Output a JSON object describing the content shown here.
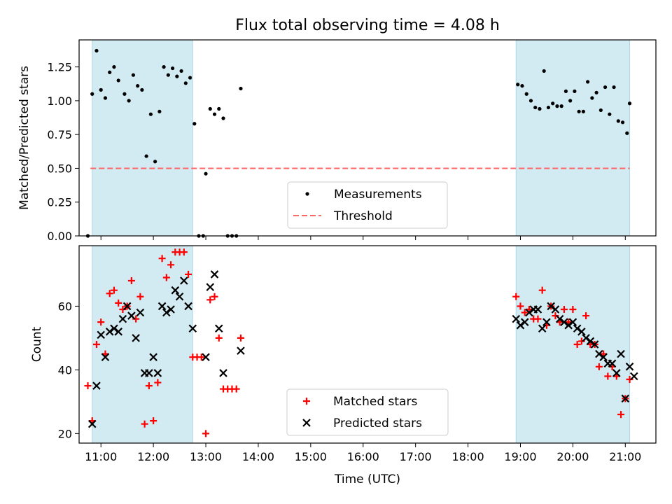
{
  "chart_data": [
    {
      "type": "scatter",
      "title": "Flux total observing time = 4.08 h",
      "ylabel": "Matched/Predicted stars",
      "xlim": [
        "10:35",
        "21:35"
      ],
      "ylim": [
        0,
        1.45
      ],
      "yticks": [
        "0.00",
        "0.25",
        "0.50",
        "0.75",
        "1.00",
        "1.25"
      ],
      "grid": false,
      "legend_position": "bottom-center",
      "shaded_intervals": [
        [
          "10:50",
          "12:45"
        ],
        [
          "18:55",
          "21:05"
        ]
      ],
      "shade_color": "#add8e6",
      "series": [
        {
          "name": "Measurements",
          "marker": "dot",
          "color": "#000000",
          "points": [
            [
              "10:45",
              0.0
            ],
            [
              "10:50",
              1.05
            ],
            [
              "10:55",
              1.37
            ],
            [
              "11:00",
              1.08
            ],
            [
              "11:05",
              1.02
            ],
            [
              "11:10",
              1.21
            ],
            [
              "11:15",
              1.25
            ],
            [
              "11:20",
              1.15
            ],
            [
              "11:27",
              1.05
            ],
            [
              "11:32",
              1.0
            ],
            [
              "11:37",
              1.19
            ],
            [
              "11:42",
              1.11
            ],
            [
              "11:47",
              1.08
            ],
            [
              "11:52",
              0.59
            ],
            [
              "11:57",
              0.9
            ],
            [
              "12:02",
              0.55
            ],
            [
              "12:07",
              0.92
            ],
            [
              "12:12",
              1.25
            ],
            [
              "12:17",
              1.19
            ],
            [
              "12:22",
              1.24
            ],
            [
              "12:27",
              1.18
            ],
            [
              "12:32",
              1.22
            ],
            [
              "12:37",
              1.13
            ],
            [
              "12:42",
              1.17
            ],
            [
              "12:47",
              0.83
            ],
            [
              "12:52",
              0.0
            ],
            [
              "12:57",
              0.0
            ],
            [
              "13:00",
              0.46
            ],
            [
              "13:05",
              0.94
            ],
            [
              "13:10",
              0.9
            ],
            [
              "13:15",
              0.94
            ],
            [
              "13:20",
              0.87
            ],
            [
              "13:25",
              0.0
            ],
            [
              "13:30",
              0.0
            ],
            [
              "13:35",
              0.0
            ],
            [
              "13:40",
              1.09
            ],
            [
              "18:57",
              1.12
            ],
            [
              "19:02",
              1.11
            ],
            [
              "19:07",
              1.05
            ],
            [
              "19:12",
              1.0
            ],
            [
              "19:17",
              0.95
            ],
            [
              "19:22",
              0.94
            ],
            [
              "19:27",
              1.22
            ],
            [
              "19:32",
              0.95
            ],
            [
              "19:37",
              0.98
            ],
            [
              "19:42",
              0.96
            ],
            [
              "19:47",
              0.96
            ],
            [
              "19:52",
              1.07
            ],
            [
              "19:57",
              1.0
            ],
            [
              "20:02",
              1.07
            ],
            [
              "20:07",
              0.92
            ],
            [
              "20:12",
              0.92
            ],
            [
              "20:17",
              1.14
            ],
            [
              "20:22",
              1.02
            ],
            [
              "20:27",
              1.06
            ],
            [
              "20:32",
              0.93
            ],
            [
              "20:37",
              1.1
            ],
            [
              "20:42",
              0.9
            ],
            [
              "20:47",
              1.1
            ],
            [
              "20:52",
              0.85
            ],
            [
              "20:57",
              0.84
            ],
            [
              "21:02",
              0.76
            ],
            [
              "21:05",
              0.98
            ]
          ]
        },
        {
          "name": "Threshold",
          "marker": "dashed-line",
          "color": "#ff6666",
          "points": [
            [
              "10:48",
              0.5
            ],
            [
              "21:05",
              0.5
            ]
          ]
        }
      ]
    },
    {
      "type": "scatter",
      "xlabel": "Time (UTC)",
      "ylabel": "Count",
      "xlim": [
        "10:35",
        "21:35"
      ],
      "ylim": [
        17,
        79
      ],
      "yticks": [
        "20",
        "40",
        "60"
      ],
      "xticks": [
        "11:00",
        "12:00",
        "13:00",
        "14:00",
        "15:00",
        "16:00",
        "17:00",
        "18:00",
        "19:00",
        "20:00",
        "21:00"
      ],
      "grid": false,
      "legend_position": "bottom-center",
      "shaded_intervals": [
        [
          "10:50",
          "12:45"
        ],
        [
          "18:55",
          "21:05"
        ]
      ],
      "shade_color": "#add8e6",
      "series": [
        {
          "name": "Matched stars",
          "marker": "plus",
          "color": "#ff0000",
          "points": [
            [
              "10:45",
              35
            ],
            [
              "10:50",
              24
            ],
            [
              "10:55",
              48
            ],
            [
              "11:00",
              55
            ],
            [
              "11:05",
              45
            ],
            [
              "11:10",
              64
            ],
            [
              "11:15",
              65
            ],
            [
              "11:20",
              61
            ],
            [
              "11:25",
              59
            ],
            [
              "11:30",
              60
            ],
            [
              "11:35",
              68
            ],
            [
              "11:40",
              56
            ],
            [
              "11:45",
              63
            ],
            [
              "11:50",
              23
            ],
            [
              "11:55",
              35
            ],
            [
              "12:00",
              24
            ],
            [
              "12:05",
              36
            ],
            [
              "12:10",
              75
            ],
            [
              "12:15",
              69
            ],
            [
              "12:20",
              73
            ],
            [
              "12:25",
              77
            ],
            [
              "12:30",
              77
            ],
            [
              "12:35",
              77
            ],
            [
              "12:40",
              70
            ],
            [
              "12:45",
              44
            ],
            [
              "12:50",
              44
            ],
            [
              "12:55",
              44
            ],
            [
              "13:00",
              20
            ],
            [
              "13:05",
              62
            ],
            [
              "13:10",
              63
            ],
            [
              "13:15",
              50
            ],
            [
              "13:20",
              34
            ],
            [
              "13:25",
              34
            ],
            [
              "13:30",
              34
            ],
            [
              "13:35",
              34
            ],
            [
              "13:40",
              50
            ],
            [
              "18:55",
              63
            ],
            [
              "19:00",
              60
            ],
            [
              "19:05",
              58
            ],
            [
              "19:10",
              59
            ],
            [
              "19:15",
              56
            ],
            [
              "19:20",
              56
            ],
            [
              "19:25",
              65
            ],
            [
              "19:30",
              54
            ],
            [
              "19:35",
              60
            ],
            [
              "19:40",
              57
            ],
            [
              "19:45",
              55
            ],
            [
              "19:50",
              59
            ],
            [
              "19:55",
              55
            ],
            [
              "20:00",
              59
            ],
            [
              "20:05",
              48
            ],
            [
              "20:10",
              49
            ],
            [
              "20:15",
              57
            ],
            [
              "20:20",
              48
            ],
            [
              "20:25",
              48
            ],
            [
              "20:30",
              41
            ],
            [
              "20:35",
              45
            ],
            [
              "20:40",
              38
            ],
            [
              "20:45",
              41
            ],
            [
              "20:50",
              38
            ],
            [
              "20:55",
              26
            ],
            [
              "21:00",
              31
            ],
            [
              "21:05",
              37
            ]
          ]
        },
        {
          "name": "Predicted stars",
          "marker": "x",
          "color": "#000000",
          "points": [
            [
              "10:50",
              23
            ],
            [
              "10:55",
              35
            ],
            [
              "11:00",
              51
            ],
            [
              "11:05",
              44
            ],
            [
              "11:10",
              52
            ],
            [
              "11:15",
              53
            ],
            [
              "11:20",
              52
            ],
            [
              "11:25",
              56
            ],
            [
              "11:30",
              60
            ],
            [
              "11:35",
              57
            ],
            [
              "11:40",
              50
            ],
            [
              "11:45",
              58
            ],
            [
              "11:50",
              39
            ],
            [
              "11:55",
              39
            ],
            [
              "12:00",
              44
            ],
            [
              "12:05",
              39
            ],
            [
              "12:10",
              60
            ],
            [
              "12:15",
              58
            ],
            [
              "12:20",
              59
            ],
            [
              "12:25",
              65
            ],
            [
              "12:30",
              63
            ],
            [
              "12:35",
              68
            ],
            [
              "12:40",
              60
            ],
            [
              "12:45",
              53
            ],
            [
              "13:00",
              44
            ],
            [
              "13:05",
              66
            ],
            [
              "13:10",
              70
            ],
            [
              "13:15",
              53
            ],
            [
              "13:20",
              39
            ],
            [
              "13:40",
              46
            ],
            [
              "18:55",
              56
            ],
            [
              "19:00",
              54
            ],
            [
              "19:05",
              55
            ],
            [
              "19:10",
              58
            ],
            [
              "19:15",
              59
            ],
            [
              "19:20",
              59
            ],
            [
              "19:25",
              53
            ],
            [
              "19:30",
              55
            ],
            [
              "19:35",
              60
            ],
            [
              "19:40",
              59
            ],
            [
              "19:45",
              56
            ],
            [
              "19:50",
              55
            ],
            [
              "19:55",
              54
            ],
            [
              "20:00",
              55
            ],
            [
              "20:05",
              53
            ],
            [
              "20:10",
              52
            ],
            [
              "20:15",
              50
            ],
            [
              "20:20",
              49
            ],
            [
              "20:25",
              48
            ],
            [
              "20:30",
              45
            ],
            [
              "20:35",
              44
            ],
            [
              "20:40",
              42
            ],
            [
              "20:45",
              42
            ],
            [
              "20:50",
              39
            ],
            [
              "20:55",
              45
            ],
            [
              "21:00",
              31
            ],
            [
              "21:05",
              41
            ],
            [
              "21:10",
              38
            ]
          ]
        }
      ]
    }
  ]
}
